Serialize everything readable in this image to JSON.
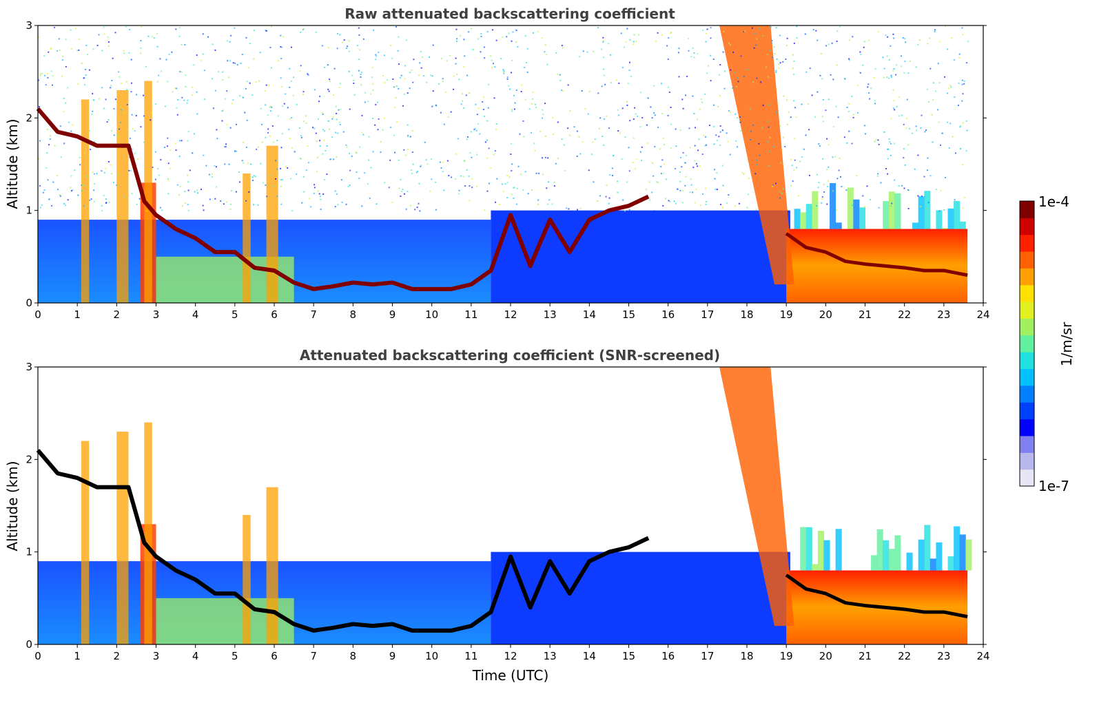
{
  "chart_data": [
    {
      "type": "heatmap",
      "title": "Raw attenuated backscattering coefficient",
      "xlabel": "",
      "ylabel": "Altitude (km)",
      "xlim": [
        0,
        24
      ],
      "ylim": [
        0,
        3
      ],
      "xticks": [
        "0",
        "1",
        "2",
        "3",
        "4",
        "5",
        "6",
        "7",
        "8",
        "9",
        "10",
        "11",
        "12",
        "13",
        "14",
        "15",
        "16",
        "17",
        "18",
        "19",
        "20",
        "21",
        "22",
        "23",
        "24"
      ],
      "yticks": [
        "0",
        "1",
        "2",
        "3"
      ],
      "data_extent_hours": 23.6,
      "boundary_layer_top": {
        "x": [
          0,
          0.5,
          1,
          1.5,
          2,
          2.3,
          2.7,
          3,
          3.5,
          4,
          4.5,
          5,
          5.5,
          6,
          6.5,
          7,
          7.5,
          8,
          8.5,
          9,
          9.5,
          10,
          10.5,
          11,
          11.5,
          12,
          12.5,
          13,
          13.5,
          14,
          14.5,
          15,
          15.5
        ],
        "y": [
          2.1,
          1.85,
          1.8,
          1.7,
          1.7,
          1.7,
          1.1,
          0.95,
          0.8,
          0.7,
          0.55,
          0.55,
          0.38,
          0.35,
          0.22,
          0.15,
          0.18,
          0.22,
          0.2,
          0.22,
          0.15,
          0.15,
          0.15,
          0.2,
          0.35,
          0.95,
          0.4,
          0.9,
          0.55,
          0.9,
          1.0,
          1.05,
          1.15
        ]
      },
      "evening_layer": {
        "x": [
          19.0,
          19.5,
          20,
          20.5,
          21,
          21.5,
          22,
          22.5,
          23,
          23.6
        ],
        "y": [
          0.75,
          0.6,
          0.55,
          0.45,
          0.42,
          0.4,
          0.38,
          0.35,
          0.35,
          0.3
        ]
      }
    },
    {
      "type": "heatmap",
      "title": "Attenuated backscattering coefficient (SNR-screened)",
      "xlabel": "Time (UTC)",
      "ylabel": "Altitude (km)",
      "xlim": [
        0,
        24
      ],
      "ylim": [
        0,
        3
      ],
      "xticks": [
        "0",
        "1",
        "2",
        "3",
        "4",
        "5",
        "6",
        "7",
        "8",
        "9",
        "10",
        "11",
        "12",
        "13",
        "14",
        "15",
        "16",
        "17",
        "18",
        "19",
        "20",
        "21",
        "22",
        "23",
        "24"
      ],
      "yticks": [
        "0",
        "1",
        "2",
        "3"
      ],
      "data_extent_hours": 23.6
    }
  ],
  "colorbar": {
    "label": "1/m/sr",
    "max_label": "1e-4",
    "min_label": "1e-7",
    "colors": [
      "#e6e6f5",
      "#b8b8ec",
      "#8080f0",
      "#0000ff",
      "#0040ff",
      "#0080ff",
      "#00c0ff",
      "#20e0e0",
      "#60f0a0",
      "#a0f060",
      "#e0f020",
      "#ffe000",
      "#ffa000",
      "#ff6000",
      "#ff2000",
      "#d00000",
      "#800000"
    ]
  }
}
